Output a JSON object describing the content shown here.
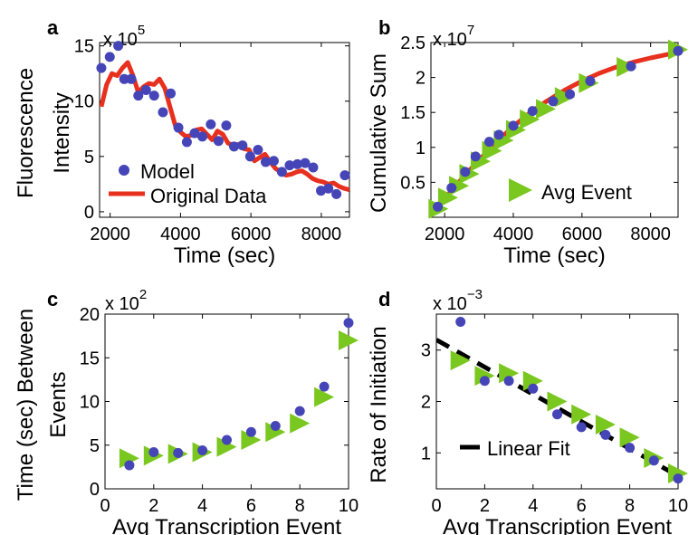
{
  "panel_letters": [
    "a",
    "b",
    "c",
    "d"
  ],
  "colors": {
    "model": "#4545b8",
    "original": "#e8301e",
    "avg_event": "#7ac71f",
    "fit": "#000000"
  },
  "chart_data": [
    {
      "panel": "a",
      "type": "scatter",
      "ylabel": [
        "Fluorescence",
        "Intensity"
      ],
      "xlabel": "Time (sec)",
      "multiplier": {
        "base": "x 10",
        "exp": "5"
      },
      "xlim": [
        1700,
        8800
      ],
      "ylim": [
        -0.5,
        15.3
      ],
      "xticks": [
        2000,
        4000,
        6000,
        8000
      ],
      "yticks": [
        0,
        5,
        10,
        15
      ],
      "legend": {
        "position": "bottom-left",
        "entries": [
          "Model",
          "Original Data"
        ]
      },
      "series": [
        {
          "name": "Model",
          "style": "dots",
          "x": [
            1750,
            1990,
            2230,
            2400,
            2600,
            2800,
            3020,
            3250,
            3500,
            3720,
            3940,
            4180,
            4400,
            4620,
            4860,
            5080,
            5300,
            5520,
            5760,
            5980,
            6200,
            6420,
            6650,
            6880,
            7100,
            7320,
            7540,
            7770,
            7990,
            8200,
            8430,
            8670
          ],
          "y": [
            13.0,
            14.0,
            15.0,
            12.0,
            12.0,
            10.5,
            11.0,
            10.5,
            9.0,
            10.7,
            7.6,
            6.3,
            7.1,
            6.8,
            7.9,
            6.4,
            7.8,
            5.9,
            6.0,
            5.0,
            5.6,
            4.5,
            4.6,
            3.6,
            4.2,
            4.3,
            4.4,
            4.0,
            1.9,
            2.1,
            1.6,
            3.3
          ]
        },
        {
          "name": "Original Data",
          "style": "line",
          "x": [
            1750,
            1900,
            2050,
            2200,
            2350,
            2500,
            2650,
            2800,
            2950,
            3100,
            3250,
            3400,
            3550,
            3700,
            3850,
            4000,
            4150,
            4300,
            4450,
            4600,
            4750,
            4900,
            5050,
            5200,
            5350,
            5500,
            5650,
            5800,
            5950,
            6100,
            6250,
            6400,
            6550,
            6700,
            6850,
            7000,
            7150,
            7300,
            7450,
            7600,
            7750,
            7900,
            8050,
            8200,
            8350,
            8500,
            8650,
            8800
          ],
          "y": [
            9.5,
            11.5,
            12.5,
            12.3,
            13.0,
            13.5,
            12.3,
            10.8,
            11.3,
            11.6,
            11.5,
            12.0,
            11.2,
            9.5,
            7.8,
            7.2,
            6.8,
            6.9,
            7.4,
            7.5,
            7.0,
            6.5,
            7.3,
            7.0,
            6.2,
            6.0,
            6.1,
            5.7,
            5.6,
            4.6,
            4.9,
            5.2,
            4.5,
            3.9,
            3.6,
            3.3,
            3.4,
            3.6,
            3.7,
            3.4,
            3.0,
            2.8,
            2.7,
            2.5,
            2.6,
            2.3,
            2.1,
            2.0
          ]
        }
      ]
    },
    {
      "panel": "b",
      "type": "scatter",
      "ylabel": [
        "Cumulative Sum"
      ],
      "xlabel": "Time (sec)",
      "multiplier": {
        "base": "x 10",
        "exp": "7"
      },
      "xlim": [
        1600,
        8800
      ],
      "ylim": [
        0,
        2.5
      ],
      "xticks": [
        2000,
        4000,
        6000,
        8000
      ],
      "yticks": [
        0.5,
        1,
        1.5,
        2,
        2.5
      ],
      "ytick_labels": [
        "0.5",
        "1",
        "1.5",
        "2",
        "2.5"
      ],
      "legend": {
        "position": "bottom-right",
        "entries": [
          "Avg Event"
        ]
      },
      "series": [
        {
          "name": "Original Data",
          "style": "line",
          "x": [
            1750,
            2000,
            2500,
            3000,
            3500,
            4000,
            4500,
            5000,
            5500,
            6000,
            6500,
            7000,
            7500,
            8000,
            8500,
            8800
          ],
          "y": [
            0.12,
            0.27,
            0.55,
            0.82,
            1.07,
            1.3,
            1.5,
            1.67,
            1.82,
            1.95,
            2.06,
            2.15,
            2.22,
            2.28,
            2.33,
            2.36
          ]
        },
        {
          "name": "Avg Event",
          "style": "triangles",
          "x": [
            1820,
            2100,
            2420,
            2720,
            3050,
            3380,
            3720,
            4080,
            4480,
            4950,
            5500,
            6200,
            7300,
            8800
          ],
          "y": [
            0.12,
            0.28,
            0.45,
            0.62,
            0.8,
            0.95,
            1.1,
            1.25,
            1.4,
            1.55,
            1.72,
            1.92,
            2.15,
            2.4
          ]
        },
        {
          "name": "Model",
          "style": "dots",
          "x": [
            1800,
            2200,
            2600,
            2900,
            3300,
            3580,
            4000,
            4560,
            5160,
            5650,
            6240,
            7430,
            8800
          ],
          "y": [
            0.15,
            0.42,
            0.65,
            0.87,
            1.08,
            1.18,
            1.31,
            1.52,
            1.66,
            1.76,
            1.95,
            2.16,
            2.38
          ]
        }
      ]
    },
    {
      "panel": "c",
      "type": "scatter",
      "ylabel": [
        "Time (sec) Between",
        "Events"
      ],
      "xlabel": "Avg Transcription Event",
      "multiplier": {
        "base": "x 10",
        "exp": "2"
      },
      "xlim": [
        0,
        10
      ],
      "ylim": [
        0,
        20
      ],
      "xticks": [
        0,
        2,
        4,
        6,
        8,
        10
      ],
      "yticks": [
        0,
        5,
        10,
        15,
        20
      ],
      "series": [
        {
          "name": "Avg Event",
          "style": "triangles",
          "x": [
            1,
            2,
            3,
            4,
            5,
            6,
            7,
            8,
            9,
            10
          ],
          "y": [
            3.5,
            3.8,
            4.0,
            4.2,
            4.8,
            5.6,
            6.5,
            7.5,
            10.5,
            17.0
          ]
        },
        {
          "name": "Model",
          "style": "dots",
          "x": [
            1,
            2,
            3,
            4,
            5,
            6,
            7,
            8,
            9,
            10
          ],
          "y": [
            2.7,
            4.2,
            4.1,
            4.4,
            5.6,
            6.5,
            7.2,
            8.9,
            11.7,
            19.0
          ]
        }
      ]
    },
    {
      "panel": "d",
      "type": "scatter",
      "ylabel": [
        "Rate of Initiation"
      ],
      "xlabel": "Avg Transcription Event",
      "multiplier": {
        "base": "x 10",
        "exp": "−3"
      },
      "xlim": [
        0,
        10
      ],
      "ylim": [
        0.3,
        3.7
      ],
      "xticks": [
        0,
        2,
        4,
        6,
        8,
        10
      ],
      "yticks": [
        1,
        2,
        3
      ],
      "legend": {
        "position": "bottom-left",
        "entries": [
          "Linear Fit"
        ]
      },
      "series": [
        {
          "name": "Linear Fit",
          "style": "dashed",
          "x": [
            0,
            10
          ],
          "y": [
            3.2,
            0.55
          ]
        },
        {
          "name": "Avg Event",
          "style": "triangles",
          "x": [
            1,
            2,
            3,
            4,
            5,
            6,
            7,
            8,
            9,
            10
          ],
          "y": [
            2.8,
            2.5,
            2.55,
            2.4,
            2.0,
            1.75,
            1.55,
            1.3,
            0.9,
            0.6
          ]
        },
        {
          "name": "Model",
          "style": "dots",
          "x": [
            1,
            2,
            3,
            4,
            5,
            6,
            7,
            8,
            9,
            10
          ],
          "y": [
            3.55,
            2.4,
            2.4,
            2.25,
            1.75,
            1.5,
            1.35,
            1.1,
            0.85,
            0.5
          ]
        }
      ]
    }
  ]
}
